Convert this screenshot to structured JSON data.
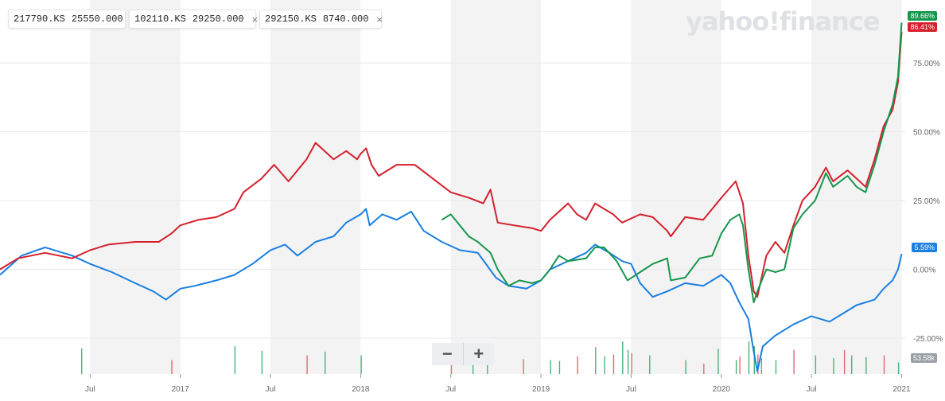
{
  "legend": [
    {
      "symbol": "217790.KS",
      "value": "25550.000",
      "color": "#1a7fe0",
      "removable": false
    },
    {
      "symbol": "102110.KS",
      "value": "29250.000",
      "color": "#d4202c",
      "removable": true
    },
    {
      "symbol": "292150.KS",
      "value": "8740.000",
      "color": "#16964b",
      "removable": true
    }
  ],
  "close_glyph": "×",
  "brand": "yahoo!finance",
  "zoom": {
    "minus": "−",
    "plus": "+"
  },
  "last_values": {
    "green": "89.66%",
    "red": "86.41%",
    "blue": "5.59%",
    "volume": "53.58k"
  },
  "chart_data": {
    "type": "line",
    "yaxis_ticks": [
      "75.00%",
      "50.00%",
      "25.00%",
      "0.00%",
      "-25.00%"
    ],
    "y_tick_values": [
      75,
      50,
      25,
      0,
      -25
    ],
    "ylim": [
      -38,
      95
    ],
    "xaxis_labels": [
      "Jul",
      "2017",
      "Jul",
      "2018",
      "Jul",
      "2019",
      "Jul",
      "2020",
      "Jul",
      "2021"
    ],
    "x_label_times": [
      2016.5,
      2017.0,
      2017.5,
      2018.0,
      2018.5,
      2019.0,
      2019.5,
      2020.0,
      2020.5,
      2021.0
    ],
    "xlim": [
      2016.0,
      2021.02
    ],
    "series": [
      {
        "name": "217790.KS",
        "color": "#1a7fe0",
        "points": [
          [
            2016.0,
            -2
          ],
          [
            2016.12,
            5
          ],
          [
            2016.25,
            8
          ],
          [
            2016.4,
            5
          ],
          [
            2016.5,
            2
          ],
          [
            2016.62,
            -1
          ],
          [
            2016.75,
            -5
          ],
          [
            2016.85,
            -8
          ],
          [
            2016.92,
            -11
          ],
          [
            2017.0,
            -7
          ],
          [
            2017.08,
            -6
          ],
          [
            2017.2,
            -4
          ],
          [
            2017.3,
            -2
          ],
          [
            2017.4,
            2
          ],
          [
            2017.5,
            7
          ],
          [
            2017.58,
            9
          ],
          [
            2017.65,
            5
          ],
          [
            2017.75,
            10
          ],
          [
            2017.85,
            12
          ],
          [
            2017.92,
            17
          ],
          [
            2018.0,
            20
          ],
          [
            2018.03,
            22
          ],
          [
            2018.05,
            16
          ],
          [
            2018.12,
            20
          ],
          [
            2018.2,
            18
          ],
          [
            2018.28,
            21
          ],
          [
            2018.35,
            14
          ],
          [
            2018.45,
            10
          ],
          [
            2018.55,
            7
          ],
          [
            2018.65,
            6
          ],
          [
            2018.75,
            -3
          ],
          [
            2018.82,
            -6
          ],
          [
            2018.92,
            -7
          ],
          [
            2019.0,
            -4
          ],
          [
            2019.05,
            0
          ],
          [
            2019.15,
            3
          ],
          [
            2019.25,
            6
          ],
          [
            2019.3,
            9
          ],
          [
            2019.38,
            6
          ],
          [
            2019.45,
            3
          ],
          [
            2019.5,
            2
          ],
          [
            2019.55,
            -5
          ],
          [
            2019.62,
            -10
          ],
          [
            2019.7,
            -8
          ],
          [
            2019.8,
            -5
          ],
          [
            2019.9,
            -6
          ],
          [
            2020.0,
            -2
          ],
          [
            2020.05,
            -5
          ],
          [
            2020.1,
            -12
          ],
          [
            2020.15,
            -18
          ],
          [
            2020.18,
            -30
          ],
          [
            2020.2,
            -37
          ],
          [
            2020.23,
            -28
          ],
          [
            2020.3,
            -24
          ],
          [
            2020.4,
            -20
          ],
          [
            2020.5,
            -17
          ],
          [
            2020.6,
            -19
          ],
          [
            2020.7,
            -15
          ],
          [
            2020.75,
            -13
          ],
          [
            2020.85,
            -11
          ],
          [
            2020.9,
            -7
          ],
          [
            2020.95,
            -4
          ],
          [
            2020.98,
            0
          ],
          [
            2021.0,
            5.59
          ]
        ]
      },
      {
        "name": "102110.KS",
        "color": "#d4202c",
        "points": [
          [
            2016.0,
            0
          ],
          [
            2016.1,
            4
          ],
          [
            2016.25,
            6
          ],
          [
            2016.4,
            4
          ],
          [
            2016.5,
            7
          ],
          [
            2016.6,
            9
          ],
          [
            2016.75,
            10
          ],
          [
            2016.88,
            10
          ],
          [
            2016.95,
            13
          ],
          [
            2017.0,
            16
          ],
          [
            2017.1,
            18
          ],
          [
            2017.2,
            19
          ],
          [
            2017.3,
            22
          ],
          [
            2017.35,
            28
          ],
          [
            2017.45,
            33
          ],
          [
            2017.52,
            38
          ],
          [
            2017.6,
            32
          ],
          [
            2017.7,
            40
          ],
          [
            2017.75,
            46
          ],
          [
            2017.85,
            40
          ],
          [
            2017.92,
            43
          ],
          [
            2017.98,
            40
          ],
          [
            2018.0,
            42
          ],
          [
            2018.03,
            44
          ],
          [
            2018.06,
            38
          ],
          [
            2018.1,
            34
          ],
          [
            2018.2,
            38
          ],
          [
            2018.3,
            38
          ],
          [
            2018.4,
            33
          ],
          [
            2018.5,
            28
          ],
          [
            2018.6,
            26
          ],
          [
            2018.68,
            24
          ],
          [
            2018.72,
            29
          ],
          [
            2018.76,
            17
          ],
          [
            2018.85,
            16
          ],
          [
            2018.95,
            15
          ],
          [
            2019.0,
            14
          ],
          [
            2019.05,
            18
          ],
          [
            2019.15,
            24
          ],
          [
            2019.2,
            20
          ],
          [
            2019.25,
            18
          ],
          [
            2019.3,
            24
          ],
          [
            2019.4,
            20
          ],
          [
            2019.45,
            17
          ],
          [
            2019.55,
            20
          ],
          [
            2019.62,
            19
          ],
          [
            2019.7,
            14
          ],
          [
            2019.72,
            12
          ],
          [
            2019.8,
            19
          ],
          [
            2019.9,
            18
          ],
          [
            2020.0,
            26
          ],
          [
            2020.08,
            32
          ],
          [
            2020.12,
            24
          ],
          [
            2020.15,
            5
          ],
          [
            2020.18,
            -8
          ],
          [
            2020.2,
            -10
          ],
          [
            2020.25,
            5
          ],
          [
            2020.3,
            10
          ],
          [
            2020.35,
            6
          ],
          [
            2020.4,
            16
          ],
          [
            2020.45,
            25
          ],
          [
            2020.52,
            30
          ],
          [
            2020.58,
            37
          ],
          [
            2020.62,
            32
          ],
          [
            2020.7,
            36
          ],
          [
            2020.75,
            33
          ],
          [
            2020.8,
            30
          ],
          [
            2020.85,
            40
          ],
          [
            2020.9,
            52
          ],
          [
            2020.95,
            58
          ],
          [
            2020.98,
            68
          ],
          [
            2021.0,
            86.41
          ]
        ]
      },
      {
        "name": "292150.KS",
        "color": "#16964b",
        "points": [
          [
            2018.45,
            18
          ],
          [
            2018.5,
            20
          ],
          [
            2018.55,
            16
          ],
          [
            2018.6,
            12
          ],
          [
            2018.65,
            10
          ],
          [
            2018.72,
            6
          ],
          [
            2018.76,
            0
          ],
          [
            2018.82,
            -6
          ],
          [
            2018.88,
            -4
          ],
          [
            2018.95,
            -5
          ],
          [
            2019.0,
            -4
          ],
          [
            2019.05,
            0
          ],
          [
            2019.1,
            5
          ],
          [
            2019.15,
            3
          ],
          [
            2019.25,
            4
          ],
          [
            2019.3,
            8
          ],
          [
            2019.35,
            8
          ],
          [
            2019.42,
            3
          ],
          [
            2019.48,
            -4
          ],
          [
            2019.55,
            -1
          ],
          [
            2019.62,
            2
          ],
          [
            2019.7,
            4
          ],
          [
            2019.72,
            -4
          ],
          [
            2019.8,
            -3
          ],
          [
            2019.88,
            4
          ],
          [
            2019.95,
            5
          ],
          [
            2020.0,
            13
          ],
          [
            2020.05,
            18
          ],
          [
            2020.1,
            20
          ],
          [
            2020.12,
            16
          ],
          [
            2020.15,
            0
          ],
          [
            2020.18,
            -12
          ],
          [
            2020.2,
            -8
          ],
          [
            2020.25,
            0
          ],
          [
            2020.3,
            -1
          ],
          [
            2020.35,
            0
          ],
          [
            2020.4,
            15
          ],
          [
            2020.45,
            20
          ],
          [
            2020.52,
            25
          ],
          [
            2020.58,
            35
          ],
          [
            2020.62,
            30
          ],
          [
            2020.7,
            34
          ],
          [
            2020.75,
            30
          ],
          [
            2020.8,
            28
          ],
          [
            2020.85,
            38
          ],
          [
            2020.9,
            50
          ],
          [
            2020.95,
            60
          ],
          [
            2020.98,
            70
          ],
          [
            2021.0,
            89.66
          ]
        ]
      }
    ],
    "volume": {
      "color_up": "#49b37a",
      "color_down": "#e06a6f",
      "max": 120,
      "bars": [
        [
          2016.45,
          55
        ],
        [
          2016.95,
          30
        ],
        [
          2017.3,
          60
        ],
        [
          2017.45,
          50
        ],
        [
          2017.7,
          40
        ],
        [
          2017.8,
          48
        ],
        [
          2018.0,
          40
        ],
        [
          2018.5,
          30
        ],
        [
          2018.62,
          42
        ],
        [
          2018.7,
          45
        ],
        [
          2018.9,
          32
        ],
        [
          2019.05,
          30
        ],
        [
          2019.1,
          28
        ],
        [
          2019.2,
          38
        ],
        [
          2019.3,
          58
        ],
        [
          2019.35,
          38
        ],
        [
          2019.4,
          42
        ],
        [
          2019.45,
          70
        ],
        [
          2019.48,
          52
        ],
        [
          2019.5,
          45
        ],
        [
          2019.6,
          40
        ],
        [
          2019.8,
          30
        ],
        [
          2019.9,
          22
        ],
        [
          2019.98,
          54
        ],
        [
          2020.08,
          30
        ],
        [
          2020.1,
          38
        ],
        [
          2020.15,
          70
        ],
        [
          2020.18,
          60
        ],
        [
          2020.2,
          42
        ],
        [
          2020.22,
          34
        ],
        [
          2020.3,
          30
        ],
        [
          2020.4,
          52
        ],
        [
          2020.52,
          40
        ],
        [
          2020.62,
          34
        ],
        [
          2020.68,
          52
        ],
        [
          2020.72,
          40
        ],
        [
          2020.8,
          36
        ],
        [
          2020.9,
          40
        ],
        [
          2020.98,
          25
        ]
      ]
    }
  }
}
